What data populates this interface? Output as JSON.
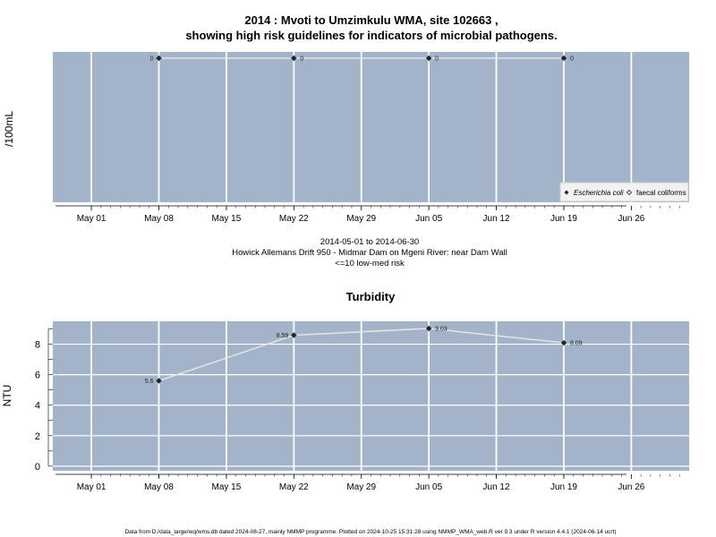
{
  "title_line1": "2014 : Mvoti to Umzimkulu WMA, site 102663 ,",
  "title_line2": "showing high risk guidelines for indicators of microbial pathogens.",
  "subtitle": {
    "date_range": "2014-05-01 to 2014-06-30",
    "site_description": "Howick Allemans Drift 950 - Midmar Dam on Mgeni River: near Dam Wall",
    "risk_note": "<=10 low-med risk"
  },
  "footer": "Data from D:/data_large/wq/wms.db dated 2024-08-27, mainly NMMP programme. Plotted on 2024-10-25 15:31:28 using NMMP_WMA_web.R ver 9.3 under R version 4.4.1 (2024-06-14 ucrt)",
  "colors": {
    "panel_bg": "#a3b3c9",
    "grid": "#ffffff",
    "line": "#e6e6e6",
    "marker": "#222222"
  },
  "chart_data": [
    {
      "type": "line",
      "title": "",
      "ylabel": "/100mL",
      "x_tick_labels": [
        "May 01",
        "May 08",
        "May 15",
        "May 22",
        "May 29",
        "Jun 05",
        "Jun 12",
        "Jun 19",
        "Jun 26"
      ],
      "xlim": [
        "2014-04-27",
        "2014-07-02"
      ],
      "series": [
        {
          "name": "Escherichia coli",
          "x": [
            "2014-05-08",
            "2014-05-22",
            "2014-06-05",
            "2014-06-19"
          ],
          "y": [
            0,
            0,
            0,
            0
          ],
          "labels": [
            "0",
            "0",
            "0",
            "0"
          ]
        }
      ],
      "legend": {
        "position": "bottom-right",
        "entries": [
          {
            "label": "Escherichia coli",
            "marker": "filled-diamond",
            "italic": true
          },
          {
            "label": "faecal coliforms",
            "marker": "open-diamond",
            "italic": false
          }
        ]
      },
      "grid": true
    },
    {
      "type": "line",
      "title": "Turbidity",
      "ylabel": "NTU",
      "x_tick_labels": [
        "May 01",
        "May 08",
        "May 15",
        "May 22",
        "May 29",
        "Jun 05",
        "Jun 12",
        "Jun 19",
        "Jun 26"
      ],
      "xlim": [
        "2014-04-27",
        "2014-07-02"
      ],
      "ylim": [
        -0.3,
        9.5
      ],
      "y_ticks": [
        0,
        2,
        4,
        6,
        8
      ],
      "series": [
        {
          "x": [
            "2014-05-08",
            "2014-05-22",
            "2014-06-05",
            "2014-06-19"
          ],
          "y": [
            5.6,
            8.59,
            9.03,
            8.09
          ],
          "labels": [
            "5.6",
            "8.59",
            "9.03",
            "8.09"
          ]
        }
      ],
      "grid": true
    }
  ]
}
